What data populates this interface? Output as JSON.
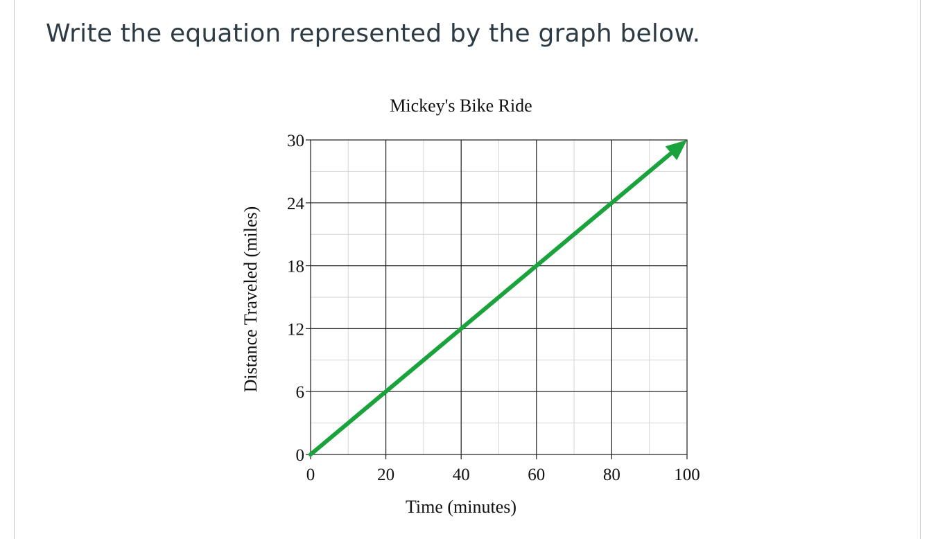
{
  "question": {
    "prompt": "Write the equation represented by the graph below."
  },
  "colors": {
    "line": "#1aa33c",
    "grid_major": "#1a1a1a",
    "grid_minor": "#d6d6d6",
    "text": "#2d3b45"
  },
  "chart_data": {
    "type": "line",
    "title": "Mickey's Bike Ride",
    "xlabel": "Time (minutes)",
    "ylabel": "Distance Traveled (miles)",
    "xlim": [
      0,
      100
    ],
    "ylim": [
      0,
      30
    ],
    "x_ticks": [
      0,
      20,
      40,
      60,
      80,
      100
    ],
    "y_ticks": [
      0,
      6,
      12,
      18,
      24,
      30
    ],
    "x_tick_labels": [
      "0",
      "20",
      "40",
      "60",
      "80",
      "100"
    ],
    "y_tick_labels": [
      "0",
      "6",
      "12",
      "18",
      "24",
      "30"
    ],
    "x_minor_step": 10,
    "y_minor_step": 3,
    "grid": true,
    "arrow_at_end": true,
    "series": [
      {
        "name": "Distance",
        "x": [
          0,
          20,
          40,
          60,
          80,
          100
        ],
        "y": [
          0,
          6,
          12,
          18,
          24,
          30
        ]
      }
    ]
  }
}
